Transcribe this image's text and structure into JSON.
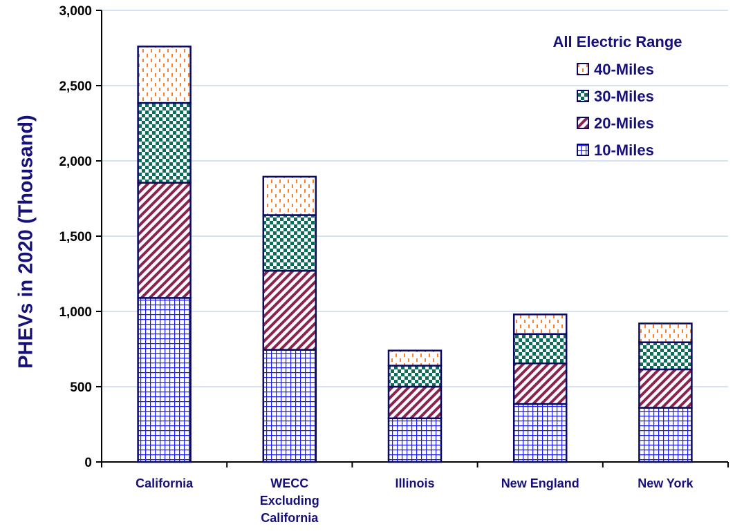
{
  "chart_data": {
    "type": "bar",
    "stacked": true,
    "title": "",
    "xlabel": "",
    "ylabel": "PHEVs in 2020 (Thousand)",
    "ylim": [
      0,
      3000
    ],
    "yticks": [
      "0",
      "500",
      "1,000",
      "1,500",
      "2,000",
      "2,500",
      "3,000"
    ],
    "grid": true,
    "legend_title": "All Electric Range",
    "legend_position": "top-right",
    "categories": [
      [
        "California"
      ],
      [
        "WECC",
        "Excluding",
        "California"
      ],
      [
        "Illinois"
      ],
      [
        "New England"
      ],
      [
        "New York"
      ]
    ],
    "series": [
      {
        "name": "10-Miles",
        "color": "#1a1aff",
        "pattern": "grid",
        "values": [
          1090,
          745,
          290,
          385,
          360
        ]
      },
      {
        "name": "20-Miles",
        "color": "#8b2252",
        "pattern": "diagonal",
        "values": [
          765,
          525,
          210,
          270,
          255
        ]
      },
      {
        "name": "30-Miles",
        "color": "#0f6b5a",
        "pattern": "checker",
        "values": [
          530,
          370,
          140,
          195,
          180
        ]
      },
      {
        "name": "40-Miles",
        "color": "#ff7f27",
        "pattern": "dashes",
        "values": [
          375,
          255,
          100,
          130,
          125
        ]
      }
    ],
    "legend_order": [
      3,
      2,
      1,
      0
    ]
  }
}
